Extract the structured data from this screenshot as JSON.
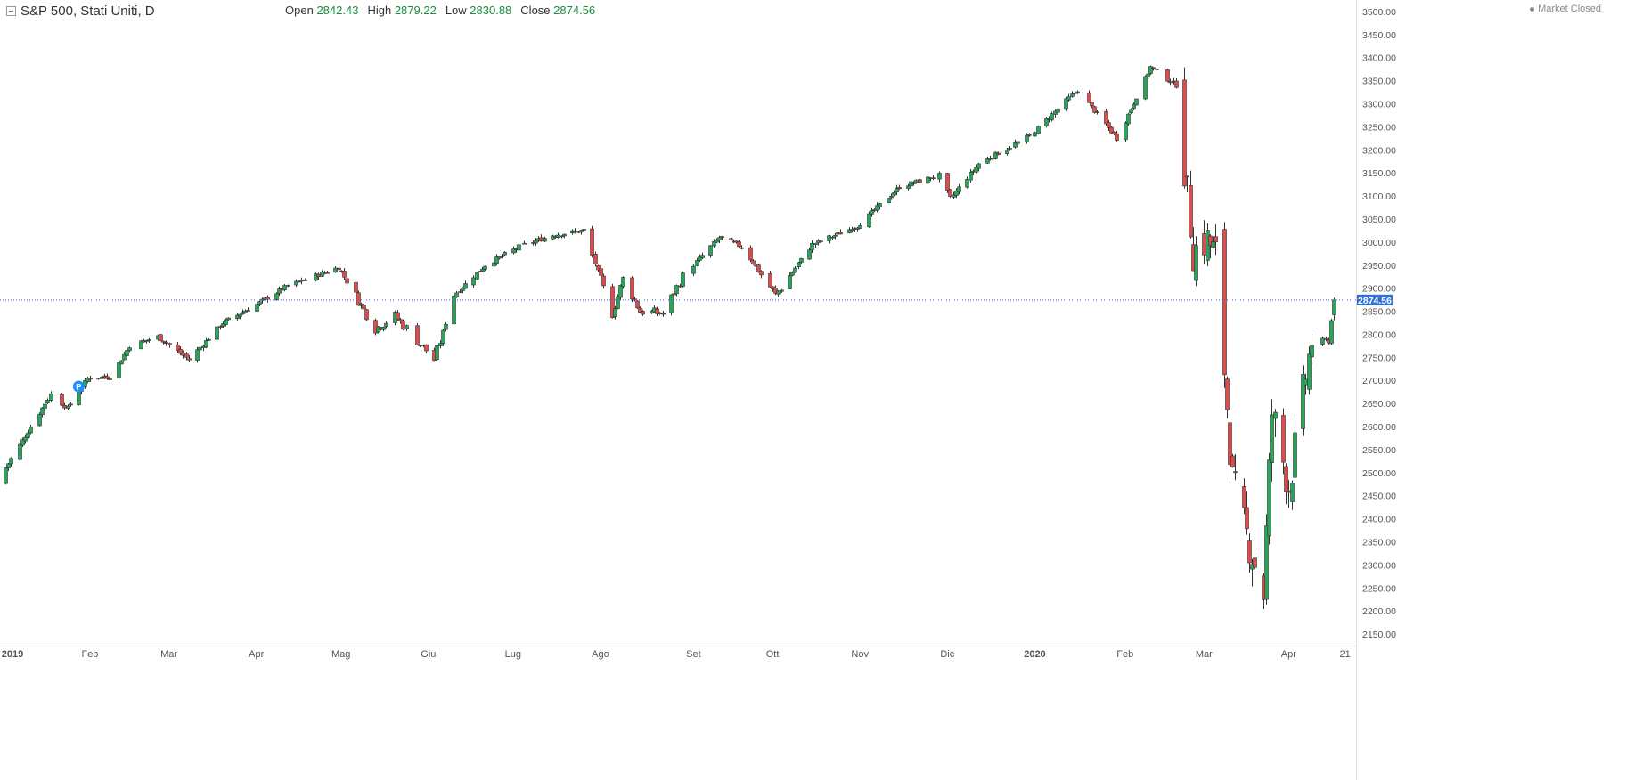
{
  "header": {
    "symbol": "S&P 500, Stati Uniti, D",
    "open_label": "Open",
    "open": "2842.43",
    "high_label": "High",
    "high": "2879.22",
    "low_label": "Low",
    "low": "2830.88",
    "close_label": "Close",
    "close": "2874.56",
    "market_status": "Market Closed"
  },
  "marker": {
    "label": "P"
  },
  "colors": {
    "up": "#26a65b",
    "down": "#e04a4a",
    "price_line": "#3a66d6",
    "badge": "#2f6fd6"
  },
  "chart_data": {
    "type": "candlestick",
    "ylim": [
      2125,
      3525
    ],
    "yticks": [
      2150,
      2200,
      2250,
      2300,
      2350,
      2400,
      2450,
      2500,
      2550,
      2600,
      2650,
      2700,
      2750,
      2800,
      2850,
      2900,
      2950,
      3000,
      3050,
      3100,
      3150,
      3200,
      3250,
      3300,
      3350,
      3400,
      3450,
      3500
    ],
    "xlabels": [
      "2019",
      "Feb",
      "Mar",
      "Apr",
      "Mag",
      "Giu",
      "Lug",
      "Ago",
      "Set",
      "Ott",
      "Nov",
      "Dic",
      "2020",
      "Feb",
      "Mar",
      "Apr",
      "21"
    ],
    "last_price": "2874.56",
    "anchors": [
      [
        "2019-01-02",
        2510
      ],
      [
        "2019-01-04",
        2530
      ],
      [
        "2019-01-10",
        2590
      ],
      [
        "2019-01-18",
        2670
      ],
      [
        "2019-01-24",
        2640
      ],
      [
        "2019-01-31",
        2705
      ],
      [
        "2019-02-08",
        2708
      ],
      [
        "2019-02-15",
        2775
      ],
      [
        "2019-02-25",
        2795
      ],
      [
        "2019-03-08",
        2745
      ],
      [
        "2019-03-20",
        2825
      ],
      [
        "2019-04-01",
        2865
      ],
      [
        "2019-04-12",
        2905
      ],
      [
        "2019-04-30",
        2945
      ],
      [
        "2019-05-13",
        2812
      ],
      [
        "2019-05-20",
        2840
      ],
      [
        "2019-06-03",
        2745
      ],
      [
        "2019-06-10",
        2885
      ],
      [
        "2019-06-21",
        2950
      ],
      [
        "2019-07-03",
        2990
      ],
      [
        "2019-07-15",
        3015
      ],
      [
        "2019-07-26",
        3025
      ],
      [
        "2019-08-05",
        2845
      ],
      [
        "2019-08-09",
        2920
      ],
      [
        "2019-08-15",
        2850
      ],
      [
        "2019-08-23",
        2845
      ],
      [
        "2019-08-30",
        2925
      ],
      [
        "2019-09-12",
        3010
      ],
      [
        "2019-09-20",
        2990
      ],
      [
        "2019-10-02",
        2885
      ],
      [
        "2019-10-15",
        2995
      ],
      [
        "2019-10-31",
        3035
      ],
      [
        "2019-11-15",
        3120
      ],
      [
        "2019-11-29",
        3145
      ],
      [
        "2019-12-03",
        3095
      ],
      [
        "2019-12-13",
        3170
      ],
      [
        "2019-12-31",
        3230
      ],
      [
        "2020-01-17",
        3330
      ],
      [
        "2020-01-31",
        3225
      ],
      [
        "2020-02-12",
        3380
      ],
      [
        "2020-02-21",
        3340
      ],
      [
        "2020-02-27",
        2980
      ],
      [
        "2020-03-03",
        3005
      ],
      [
        "2020-03-06",
        2970
      ],
      [
        "2020-03-12",
        2480
      ],
      [
        "2020-03-16",
        2385
      ],
      [
        "2020-03-23",
        2240
      ],
      [
        "2020-03-26",
        2630
      ],
      [
        "2020-04-01",
        2470
      ],
      [
        "2020-04-09",
        2790
      ],
      [
        "2020-04-15",
        2785
      ],
      [
        "2020-04-17",
        2874.56
      ]
    ]
  }
}
